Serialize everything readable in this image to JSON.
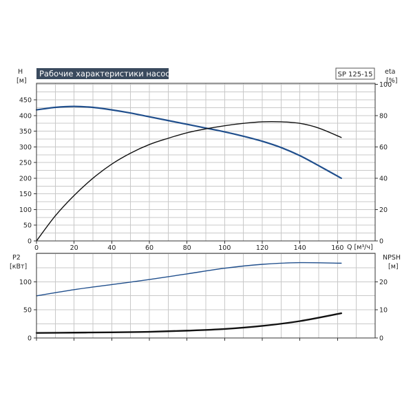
{
  "chart_data": [
    {
      "type": "line",
      "title": "Рабочие характеристики насоса",
      "model": "SP 125-15",
      "xlabel": "Q [м³/ч]",
      "x_ticks": [
        "0",
        "20",
        "40",
        "60",
        "80",
        "100",
        "120",
        "140",
        "160"
      ],
      "xlim": [
        0,
        180
      ],
      "ylabel_left": "H",
      "ylabel_left_unit": "[м]",
      "ylim_left": [
        0,
        500
      ],
      "y_ticks_left": [
        "0",
        "50",
        "100",
        "150",
        "200",
        "250",
        "300",
        "350",
        "400",
        "450"
      ],
      "ylabel_right": "eta",
      "ylabel_right_unit": "[%]",
      "ylim_right": [
        0,
        100
      ],
      "y_ticks_right": [
        "0",
        "20",
        "40",
        "60",
        "80",
        "100"
      ],
      "grid": true,
      "series": [
        {
          "axis": "left",
          "color": "#1f4e8c",
          "x": [
            0,
            10,
            20,
            30,
            40,
            50,
            60,
            70,
            80,
            90,
            100,
            110,
            120,
            130,
            140,
            150,
            162
          ],
          "y": [
            418,
            426,
            429,
            426,
            418,
            408,
            396,
            384,
            372,
            360,
            348,
            334,
            318,
            298,
            272,
            240,
            200
          ]
        },
        {
          "axis": "right",
          "color": "#111111",
          "x": [
            0,
            10,
            20,
            30,
            40,
            50,
            60,
            70,
            80,
            90,
            100,
            110,
            120,
            130,
            140,
            150,
            162
          ],
          "y": [
            0,
            16,
            29,
            40,
            49,
            56,
            61.5,
            65.5,
            69,
            71.5,
            73.5,
            75,
            76,
            76,
            75,
            72,
            66
          ]
        }
      ]
    },
    {
      "type": "line",
      "xlim": [
        0,
        180
      ],
      "ylabel_left": "P2",
      "ylabel_left_unit": "[кВт]",
      "ylim_left": [
        0,
        150
      ],
      "y_ticks_left": [
        "0",
        "50",
        "100"
      ],
      "ylabel_right": "NPSH",
      "ylabel_right_unit": "[м]",
      "ylim_right": [
        0,
        30
      ],
      "y_ticks_right": [
        "0",
        "10",
        "20"
      ],
      "grid": true,
      "series": [
        {
          "axis": "left",
          "color": "#1f4e8c",
          "x": [
            0,
            20,
            40,
            60,
            80,
            100,
            120,
            140,
            162
          ],
          "y": [
            75,
            86,
            95,
            104,
            114,
            124,
            131,
            134,
            133
          ]
        },
        {
          "axis": "right",
          "color": "#111111",
          "x": [
            0,
            20,
            40,
            60,
            80,
            100,
            120,
            140,
            162
          ],
          "y": [
            1.8,
            1.9,
            2.0,
            2.2,
            2.6,
            3.2,
            4.3,
            6.0,
            8.8
          ]
        }
      ]
    }
  ]
}
